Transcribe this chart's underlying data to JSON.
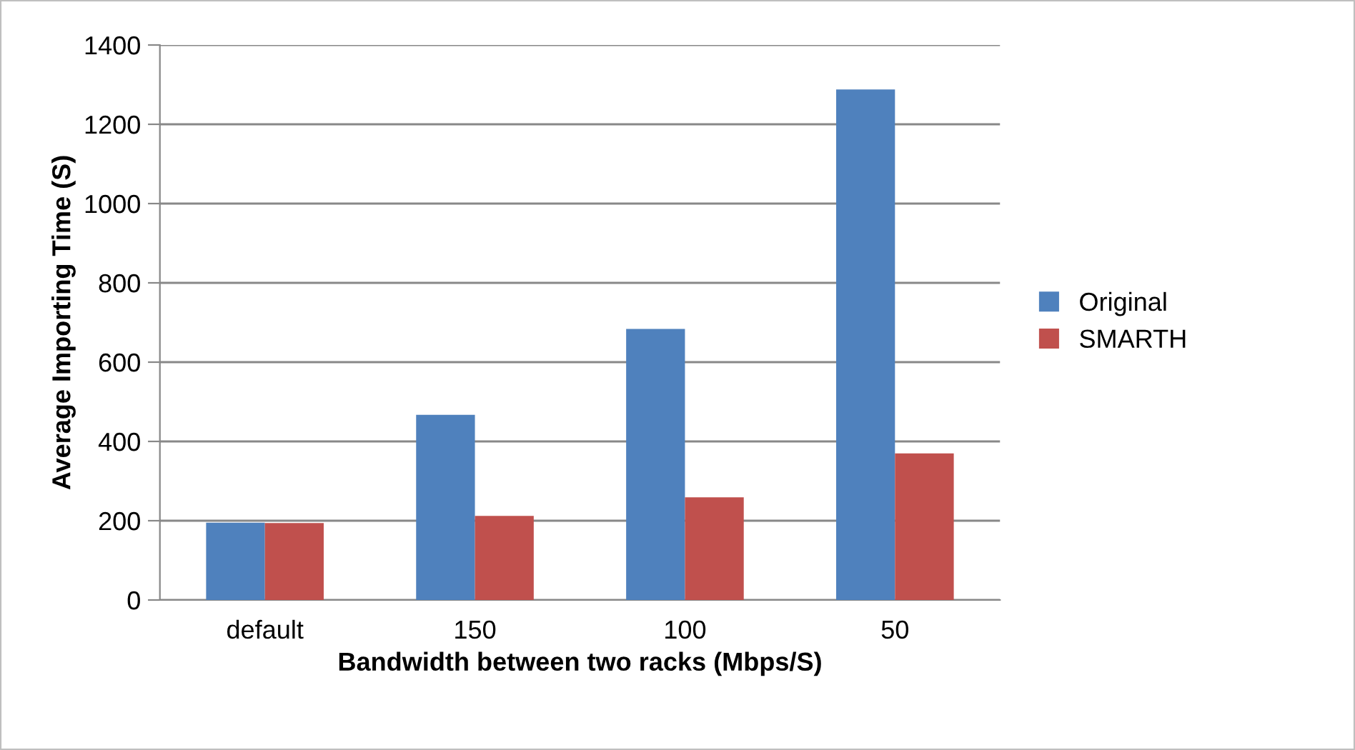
{
  "chart_data": {
    "type": "bar",
    "xlabel": "Bandwidth between two racks (Mbps/S)",
    "ylabel": "Average Importing Time (S)",
    "categories": [
      "default",
      "150",
      "100",
      "50"
    ],
    "series": [
      {
        "name": "Original",
        "color": "#4f81bd",
        "values": [
          195,
          467,
          684,
          1288
        ]
      },
      {
        "name": "SMARTH",
        "color": "#c0504d",
        "values": [
          194,
          212,
          259,
          370
        ]
      }
    ],
    "ylim": [
      0,
      1400
    ],
    "yticks": [
      0,
      200,
      400,
      600,
      800,
      1000,
      1200,
      1400
    ],
    "grid": "y",
    "legend": "right"
  }
}
